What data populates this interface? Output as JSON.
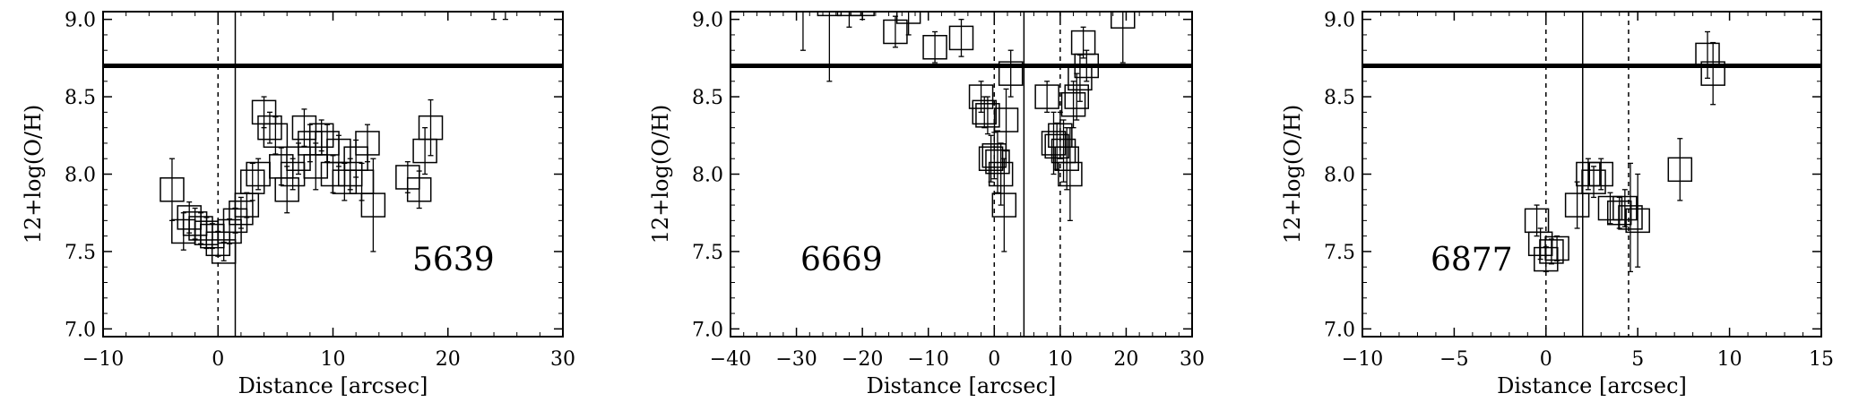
{
  "chart_data": [
    {
      "type": "scatter",
      "id_label": "5639",
      "xlabel": "Distance [arcsec]",
      "ylabel": "12+log(O/H)",
      "xlim": [
        -10,
        30
      ],
      "ylim": [
        6.95,
        9.05
      ],
      "xticks": [
        -10,
        0,
        10,
        20,
        30
      ],
      "xtick_labels": [
        "−10",
        "0",
        "10",
        "20",
        "30"
      ],
      "yticks": [
        7.0,
        7.5,
        8.0,
        8.5,
        9.0
      ],
      "ytick_labels": [
        "7.0",
        "7.5",
        "8.0",
        "8.5",
        "9.0"
      ],
      "solar_line_y": 8.7,
      "dashed_line_x": 0,
      "solid_line_x": 1.5,
      "points": [
        {
          "x": -4.0,
          "y": 7.9,
          "err": 0.2
        },
        {
          "x": -3.0,
          "y": 7.63,
          "err": 0.12
        },
        {
          "x": -2.5,
          "y": 7.72,
          "err": 0.1
        },
        {
          "x": -2.0,
          "y": 7.68,
          "err": 0.1
        },
        {
          "x": -1.5,
          "y": 7.65,
          "err": 0.1
        },
        {
          "x": -1.0,
          "y": 7.62,
          "err": 0.1
        },
        {
          "x": -0.5,
          "y": 7.6,
          "err": 0.08
        },
        {
          "x": 0.0,
          "y": 7.55,
          "err": 0.08
        },
        {
          "x": 0.5,
          "y": 7.5,
          "err": 0.06
        },
        {
          "x": 1.0,
          "y": 7.63,
          "err": 0.08
        },
        {
          "x": 1.5,
          "y": 7.7,
          "err": 0.08
        },
        {
          "x": 2.0,
          "y": 7.75,
          "err": 0.1
        },
        {
          "x": 2.5,
          "y": 7.8,
          "err": 0.08
        },
        {
          "x": 3.0,
          "y": 7.95,
          "err": 0.12
        },
        {
          "x": 3.5,
          "y": 8.0,
          "err": 0.1
        },
        {
          "x": 4.0,
          "y": 8.4,
          "err": 0.1
        },
        {
          "x": 4.5,
          "y": 8.3,
          "err": 0.1
        },
        {
          "x": 5.0,
          "y": 8.25,
          "err": 0.12
        },
        {
          "x": 5.5,
          "y": 8.05,
          "err": 0.12
        },
        {
          "x": 6.0,
          "y": 7.9,
          "err": 0.15
        },
        {
          "x": 6.5,
          "y": 8.0,
          "err": 0.1
        },
        {
          "x": 7.0,
          "y": 8.1,
          "err": 0.1
        },
        {
          "x": 7.5,
          "y": 8.3,
          "err": 0.12
        },
        {
          "x": 8.0,
          "y": 8.2,
          "err": 0.12
        },
        {
          "x": 8.5,
          "y": 8.05,
          "err": 0.15
        },
        {
          "x": 9.0,
          "y": 8.25,
          "err": 0.1
        },
        {
          "x": 9.5,
          "y": 8.2,
          "err": 0.12
        },
        {
          "x": 10.0,
          "y": 8.0,
          "err": 0.12
        },
        {
          "x": 10.5,
          "y": 8.15,
          "err": 0.1
        },
        {
          "x": 11.0,
          "y": 7.95,
          "err": 0.12
        },
        {
          "x": 11.5,
          "y": 8.0,
          "err": 0.1
        },
        {
          "x": 12.0,
          "y": 8.1,
          "err": 0.12
        },
        {
          "x": 12.5,
          "y": 7.95,
          "err": 0.12
        },
        {
          "x": 13.0,
          "y": 8.2,
          "err": 0.12
        },
        {
          "x": 13.5,
          "y": 7.8,
          "err": 0.3
        },
        {
          "x": 16.5,
          "y": 7.98,
          "err": 0.1
        },
        {
          "x": 17.5,
          "y": 7.9,
          "err": 0.12
        },
        {
          "x": 18.0,
          "y": 8.15,
          "err": 0.15
        },
        {
          "x": 18.5,
          "y": 8.3,
          "err": 0.18
        },
        {
          "x": 24.0,
          "y": 9.3,
          "err": 0.3
        },
        {
          "x": 25.0,
          "y": 9.3,
          "err": 0.3
        }
      ]
    },
    {
      "type": "scatter",
      "id_label": "6669",
      "xlabel": "Distance [arcsec]",
      "ylabel": "12+log(O/H)",
      "xlim": [
        -40,
        30
      ],
      "ylim": [
        6.95,
        9.05
      ],
      "xticks": [
        -40,
        -30,
        -20,
        -10,
        0,
        10,
        20,
        30
      ],
      "xtick_labels": [
        "−40",
        "−30",
        "−20",
        "−10",
        "0",
        "10",
        "20",
        "30"
      ],
      "yticks": [
        7.0,
        7.5,
        8.0,
        8.5,
        9.0
      ],
      "ytick_labels": [
        "7.0",
        "7.5",
        "8.0",
        "8.5",
        "9.0"
      ],
      "solar_line_y": 8.7,
      "dashed_line_x": [
        0,
        10
      ],
      "solid_line_x": 4.5,
      "points": [
        {
          "x": -29.0,
          "y": 9.2,
          "err": 0.4
        },
        {
          "x": -25.0,
          "y": 9.1,
          "err": 0.5
        },
        {
          "x": -22.0,
          "y": 9.1,
          "err": 0.15
        },
        {
          "x": -20.0,
          "y": 9.1,
          "err": 0.1
        },
        {
          "x": -15.0,
          "y": 8.92,
          "err": 0.1
        },
        {
          "x": -13.0,
          "y": 9.05,
          "err": 0.15
        },
        {
          "x": -9.0,
          "y": 8.82,
          "err": 0.1
        },
        {
          "x": -5.0,
          "y": 8.88,
          "err": 0.12
        },
        {
          "x": -2.0,
          "y": 8.5,
          "err": 0.1
        },
        {
          "x": -1.5,
          "y": 8.4,
          "err": 0.1
        },
        {
          "x": -1.0,
          "y": 8.38,
          "err": 0.12
        },
        {
          "x": -0.5,
          "y": 8.1,
          "err": 0.15
        },
        {
          "x": 0.0,
          "y": 8.12,
          "err": 0.15
        },
        {
          "x": 0.5,
          "y": 8.08,
          "err": 0.2
        },
        {
          "x": 1.0,
          "y": 8.0,
          "err": 0.2
        },
        {
          "x": 1.5,
          "y": 7.8,
          "err": 0.3
        },
        {
          "x": 1.8,
          "y": 8.35,
          "err": 0.2
        },
        {
          "x": 2.5,
          "y": 8.65,
          "err": 0.15
        },
        {
          "x": 8.0,
          "y": 8.5,
          "err": 0.1
        },
        {
          "x": 9.0,
          "y": 8.2,
          "err": 0.2
        },
        {
          "x": 9.5,
          "y": 8.18,
          "err": 0.15
        },
        {
          "x": 10.0,
          "y": 8.25,
          "err": 0.15
        },
        {
          "x": 10.5,
          "y": 8.15,
          "err": 0.2
        },
        {
          "x": 11.0,
          "y": 8.1,
          "err": 0.2
        },
        {
          "x": 11.5,
          "y": 8.0,
          "err": 0.3
        },
        {
          "x": 12.0,
          "y": 8.45,
          "err": 0.15
        },
        {
          "x": 12.5,
          "y": 8.5,
          "err": 0.15
        },
        {
          "x": 13.0,
          "y": 8.62,
          "err": 0.15
        },
        {
          "x": 13.5,
          "y": 8.85,
          "err": 0.1
        },
        {
          "x": 14.0,
          "y": 8.7,
          "err": 0.1
        },
        {
          "x": 19.5,
          "y": 9.02,
          "err": 0.3
        }
      ]
    },
    {
      "type": "scatter",
      "id_label": "6877",
      "xlabel": "Distance [arcsec]",
      "ylabel": "12+log(O/H)",
      "xlim": [
        -10,
        15
      ],
      "ylim": [
        6.95,
        9.05
      ],
      "xticks": [
        -10,
        -5,
        0,
        5,
        10,
        15
      ],
      "xtick_labels": [
        "−10",
        "−5",
        "0",
        "5",
        "10",
        "15"
      ],
      "yticks": [
        7.0,
        7.5,
        8.0,
        8.5,
        9.0
      ],
      "ytick_labels": [
        "7.0",
        "7.5",
        "8.0",
        "8.5",
        "9.0"
      ],
      "solar_line_y": 8.7,
      "dashed_line_x": [
        0,
        4.5
      ],
      "solid_line_x": 2.0,
      "points": [
        {
          "x": -0.5,
          "y": 7.7,
          "err": 0.1
        },
        {
          "x": -0.3,
          "y": 7.55,
          "err": 0.1
        },
        {
          "x": 0.0,
          "y": 7.45,
          "err": 0.08
        },
        {
          "x": 0.3,
          "y": 7.5,
          "err": 0.08
        },
        {
          "x": 0.6,
          "y": 7.52,
          "err": 0.08
        },
        {
          "x": 1.7,
          "y": 7.8,
          "err": 0.15
        },
        {
          "x": 2.3,
          "y": 8.0,
          "err": 0.1
        },
        {
          "x": 2.6,
          "y": 7.95,
          "err": 0.1
        },
        {
          "x": 3.0,
          "y": 8.0,
          "err": 0.1
        },
        {
          "x": 3.5,
          "y": 7.78,
          "err": 0.1
        },
        {
          "x": 4.0,
          "y": 7.75,
          "err": 0.1
        },
        {
          "x": 4.3,
          "y": 7.78,
          "err": 0.12
        },
        {
          "x": 4.6,
          "y": 7.72,
          "err": 0.35
        },
        {
          "x": 5.0,
          "y": 7.7,
          "err": 0.3
        },
        {
          "x": 7.3,
          "y": 8.03,
          "err": 0.2
        },
        {
          "x": 8.8,
          "y": 8.77,
          "err": 0.15
        },
        {
          "x": 9.1,
          "y": 8.65,
          "err": 0.2
        }
      ]
    }
  ]
}
